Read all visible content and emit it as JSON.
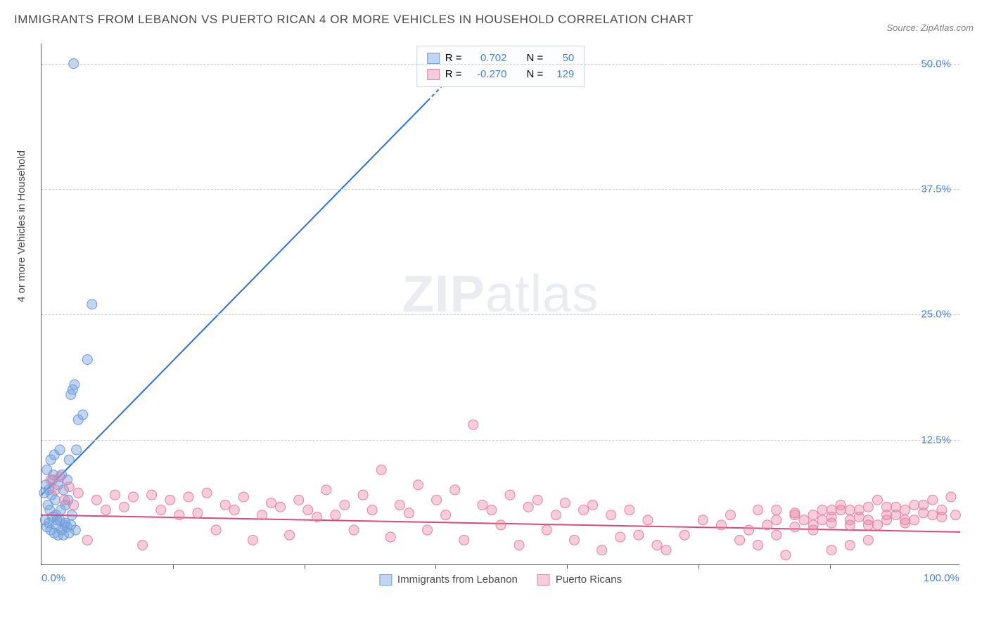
{
  "title": "IMMIGRANTS FROM LEBANON VS PUERTO RICAN 4 OR MORE VEHICLES IN HOUSEHOLD CORRELATION CHART",
  "source": "Source: ZipAtlas.com",
  "ylabel": "4 or more Vehicles in Household",
  "watermark_a": "ZIP",
  "watermark_b": "atlas",
  "chart": {
    "type": "scatter",
    "xlim": [
      0,
      100
    ],
    "ylim": [
      0,
      52
    ],
    "background_color": "#ffffff",
    "grid_color": "#d0d0d0",
    "axis_color": "#555555",
    "yticks": [
      {
        "v": 12.5,
        "label": "12.5%"
      },
      {
        "v": 25.0,
        "label": "25.0%"
      },
      {
        "v": 37.5,
        "label": "37.5%"
      },
      {
        "v": 50.0,
        "label": "50.0%"
      }
    ],
    "xticks": [
      {
        "v": 0,
        "label": "0.0%"
      },
      {
        "v": 100,
        "label": "100.0%"
      }
    ],
    "xtick_marks": [
      14.3,
      28.6,
      42.9,
      57.2,
      71.5,
      85.8
    ],
    "marker_radius": 7,
    "marker_stroke_width": 1,
    "line_width": 2,
    "series": [
      {
        "name": "Immigrants from Lebanon",
        "fill": "rgba(120,165,225,0.45)",
        "stroke": "#6b9bd8",
        "line_color": "#2f6fd0",
        "R": "0.702",
        "N": "50",
        "trend": {
          "x1": 0,
          "y1": 7.0,
          "x2": 46,
          "y2": 50,
          "dash_after_x": 42
        },
        "points": [
          [
            0.5,
            8.0
          ],
          [
            0.6,
            9.5
          ],
          [
            0.8,
            7.5
          ],
          [
            1.0,
            10.5
          ],
          [
            1.2,
            8.5
          ],
          [
            1.4,
            11.0
          ],
          [
            0.7,
            6.0
          ],
          [
            0.9,
            5.5
          ],
          [
            1.1,
            7.0
          ],
          [
            1.3,
            9.0
          ],
          [
            1.5,
            6.5
          ],
          [
            1.6,
            5.0
          ],
          [
            1.8,
            8.0
          ],
          [
            2.0,
            11.5
          ],
          [
            2.2,
            9.0
          ],
          [
            2.4,
            7.5
          ],
          [
            2.6,
            6.0
          ],
          [
            2.8,
            8.5
          ],
          [
            3.0,
            10.5
          ],
          [
            3.2,
            17.0
          ],
          [
            3.4,
            17.5
          ],
          [
            3.6,
            18.0
          ],
          [
            3.8,
            11.5
          ],
          [
            4.0,
            14.5
          ],
          [
            4.5,
            15.0
          ],
          [
            5.0,
            20.5
          ],
          [
            5.5,
            26.0
          ],
          [
            1.7,
            4.5
          ],
          [
            2.1,
            5.5
          ],
          [
            2.5,
            4.0
          ],
          [
            2.9,
            6.5
          ],
          [
            3.3,
            5.0
          ],
          [
            3.7,
            3.5
          ],
          [
            0.4,
            4.5
          ],
          [
            0.6,
            3.8
          ],
          [
            0.8,
            4.2
          ],
          [
            1.0,
            3.5
          ],
          [
            1.2,
            4.8
          ],
          [
            1.4,
            3.2
          ],
          [
            1.6,
            4.0
          ],
          [
            1.8,
            3.0
          ],
          [
            2.0,
            4.5
          ],
          [
            2.2,
            3.5
          ],
          [
            2.4,
            3.0
          ],
          [
            2.6,
            4.2
          ],
          [
            2.8,
            3.8
          ],
          [
            3.0,
            3.2
          ],
          [
            3.2,
            4.0
          ],
          [
            3.5,
            50.0
          ],
          [
            0.3,
            7.2
          ]
        ]
      },
      {
        "name": "Puerto Ricans",
        "fill": "rgba(235,130,165,0.40)",
        "stroke": "#e281a2",
        "line_color": "#e0457e",
        "R": "-0.270",
        "N": "129",
        "trend": {
          "x1": 0,
          "y1": 5.0,
          "x2": 100,
          "y2": 3.3
        },
        "points": [
          [
            1,
            8.5
          ],
          [
            1.5,
            7.5
          ],
          [
            2,
            8.8
          ],
          [
            2.5,
            6.5
          ],
          [
            3,
            7.8
          ],
          [
            3.5,
            6.0
          ],
          [
            4,
            7.2
          ],
          [
            5,
            2.5
          ],
          [
            6,
            6.5
          ],
          [
            7,
            5.5
          ],
          [
            8,
            7.0
          ],
          [
            9,
            5.8
          ],
          [
            10,
            6.8
          ],
          [
            11,
            2.0
          ],
          [
            12,
            7.0
          ],
          [
            13,
            5.5
          ],
          [
            14,
            6.5
          ],
          [
            15,
            5.0
          ],
          [
            16,
            6.8
          ],
          [
            17,
            5.2
          ],
          [
            18,
            7.2
          ],
          [
            19,
            3.5
          ],
          [
            20,
            6.0
          ],
          [
            21,
            5.5
          ],
          [
            22,
            6.8
          ],
          [
            23,
            2.5
          ],
          [
            24,
            5.0
          ],
          [
            25,
            6.2
          ],
          [
            26,
            5.8
          ],
          [
            27,
            3.0
          ],
          [
            28,
            6.5
          ],
          [
            29,
            5.5
          ],
          [
            30,
            4.8
          ],
          [
            31,
            7.5
          ],
          [
            32,
            5.0
          ],
          [
            33,
            6.0
          ],
          [
            34,
            3.5
          ],
          [
            35,
            7.0
          ],
          [
            36,
            5.5
          ],
          [
            37,
            9.5
          ],
          [
            38,
            2.8
          ],
          [
            39,
            6.0
          ],
          [
            40,
            5.2
          ],
          [
            41,
            8.0
          ],
          [
            42,
            3.5
          ],
          [
            43,
            6.5
          ],
          [
            44,
            5.0
          ],
          [
            45,
            7.5
          ],
          [
            46,
            2.5
          ],
          [
            47,
            14.0
          ],
          [
            48,
            6.0
          ],
          [
            49,
            5.5
          ],
          [
            50,
            4.0
          ],
          [
            51,
            7.0
          ],
          [
            52,
            2.0
          ],
          [
            53,
            5.8
          ],
          [
            54,
            6.5
          ],
          [
            55,
            3.5
          ],
          [
            56,
            5.0
          ],
          [
            57,
            6.2
          ],
          [
            58,
            2.5
          ],
          [
            59,
            5.5
          ],
          [
            60,
            6.0
          ],
          [
            61,
            1.5
          ],
          [
            62,
            5.0
          ],
          [
            63,
            2.8
          ],
          [
            64,
            5.5
          ],
          [
            65,
            3.0
          ],
          [
            66,
            4.5
          ],
          [
            67,
            2.0
          ],
          [
            68,
            1.5
          ],
          [
            70,
            3.0
          ],
          [
            72,
            4.5
          ],
          [
            74,
            4.0
          ],
          [
            75,
            5.0
          ],
          [
            76,
            2.5
          ],
          [
            77,
            3.5
          ],
          [
            78,
            5.5
          ],
          [
            79,
            4.0
          ],
          [
            80,
            3.0
          ],
          [
            81,
            1.0
          ],
          [
            82,
            5.0
          ],
          [
            83,
            4.5
          ],
          [
            84,
            3.5
          ],
          [
            85,
            5.5
          ],
          [
            86,
            4.8
          ],
          [
            87,
            6.0
          ],
          [
            88,
            4.0
          ],
          [
            89,
            5.5
          ],
          [
            90,
            4.5
          ],
          [
            91,
            6.5
          ],
          [
            92,
            5.0
          ],
          [
            93,
            5.8
          ],
          [
            94,
            4.5
          ],
          [
            95,
            6.0
          ],
          [
            96,
            5.2
          ],
          [
            97,
            6.5
          ],
          [
            98,
            5.5
          ],
          [
            99,
            6.8
          ],
          [
            99.5,
            5.0
          ],
          [
            86,
            1.5
          ],
          [
            88,
            2.0
          ],
          [
            90,
            2.5
          ],
          [
            78,
            2.0
          ],
          [
            80,
            4.5
          ],
          [
            82,
            3.8
          ],
          [
            84,
            5.0
          ],
          [
            86,
            4.2
          ],
          [
            88,
            5.5
          ],
          [
            90,
            4.0
          ],
          [
            92,
            5.8
          ],
          [
            94,
            4.2
          ],
          [
            96,
            6.0
          ],
          [
            98,
            4.8
          ],
          [
            94,
            5.5
          ],
          [
            90,
            5.8
          ],
          [
            92,
            4.5
          ],
          [
            88,
            4.5
          ],
          [
            86,
            5.5
          ],
          [
            84,
            4.0
          ],
          [
            82,
            5.2
          ],
          [
            80,
            5.5
          ],
          [
            95,
            4.5
          ],
          [
            97,
            5.0
          ],
          [
            93,
            5.0
          ],
          [
            91,
            4.0
          ],
          [
            89,
            4.8
          ],
          [
            87,
            5.5
          ],
          [
            85,
            4.5
          ]
        ]
      }
    ]
  },
  "legend_top_text": {
    "r_label": "R =",
    "n_label": "N ="
  },
  "legend_bottom": [
    {
      "label": "Immigrants from Lebanon",
      "fill": "rgba(120,165,225,0.45)",
      "stroke": "#6b9bd8"
    },
    {
      "label": "Puerto Ricans",
      "fill": "rgba(235,130,165,0.40)",
      "stroke": "#e281a2"
    }
  ],
  "text_colors": {
    "title": "#4a4a4a",
    "value": "#4a7fd6",
    "source": "#808080"
  }
}
